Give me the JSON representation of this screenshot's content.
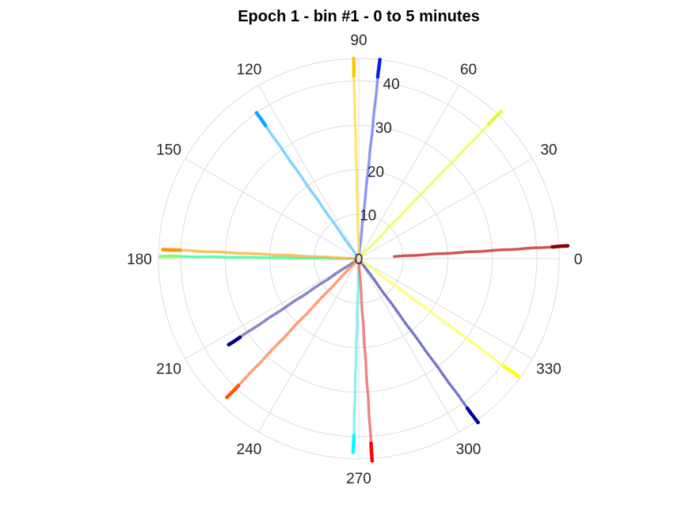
{
  "chart_data": {
    "type": "scatter",
    "coordinate_system": "polar",
    "title": "Epoch 1 - bin #1 - 0 to 5 minutes",
    "theta_ticks": [
      "0",
      "30",
      "60",
      "90",
      "120",
      "150",
      "180",
      "210",
      "240",
      "270",
      "300",
      "330"
    ],
    "theta_tick_values": [
      0,
      30,
      60,
      90,
      120,
      150,
      180,
      210,
      240,
      270,
      300,
      330
    ],
    "r_ticks": [
      "0",
      "10",
      "20",
      "30",
      "40"
    ],
    "r_tick_values": [
      0,
      10,
      20,
      30,
      40
    ],
    "r_lim": [
      0,
      45
    ],
    "grid": true,
    "series": [
      {
        "theta": 3.5,
        "r_start": 8,
        "r_end": 47,
        "colors": [
          "#cc3333",
          "#8b0000"
        ]
      },
      {
        "theta": 46,
        "r_start": 1,
        "r_end": 46,
        "colors": [
          "#e8ff50",
          "#d4ff3c"
        ]
      },
      {
        "theta": 84,
        "r_start": 1,
        "r_end": 45,
        "colors": [
          "#6f7ff0",
          "#0022ee"
        ]
      },
      {
        "theta": 91.5,
        "r_start": 1,
        "r_end": 45,
        "colors": [
          "#ffe050",
          "#ffc400"
        ]
      },
      {
        "theta": 125,
        "r_start": 1,
        "r_end": 40,
        "colors": [
          "#66ccff",
          "#00aaff"
        ]
      },
      {
        "theta": 179.3,
        "r_start": 1,
        "r_end": 44.5,
        "colors": [
          "#33ff99",
          "#88ff66"
        ]
      },
      {
        "theta": 177.3,
        "r_start": 1,
        "r_end": 44,
        "colors": [
          "#ffb040",
          "#ff9000"
        ]
      },
      {
        "theta": 213.5,
        "r_start": 1,
        "r_end": 35,
        "colors": [
          "#7777bb",
          "#000080"
        ]
      },
      {
        "theta": 226.5,
        "r_start": 1,
        "r_end": 43,
        "colors": [
          "#ff8855",
          "#ff5500"
        ]
      },
      {
        "theta": 268.4,
        "r_start": 1,
        "r_end": 43.5,
        "colors": [
          "#77eeee",
          "#00ffff"
        ]
      },
      {
        "theta": 273.8,
        "r_start": 1,
        "r_end": 45.5,
        "colors": [
          "#ee6666",
          "#ff0000"
        ]
      },
      {
        "theta": 306,
        "r_start": 1,
        "r_end": 45.5,
        "colors": [
          "#5555bb",
          "#000099"
        ]
      },
      {
        "theta": 323.5,
        "r_start": 1,
        "r_end": 44.5,
        "colors": [
          "#ffff66",
          "#ffff00"
        ]
      }
    ]
  }
}
